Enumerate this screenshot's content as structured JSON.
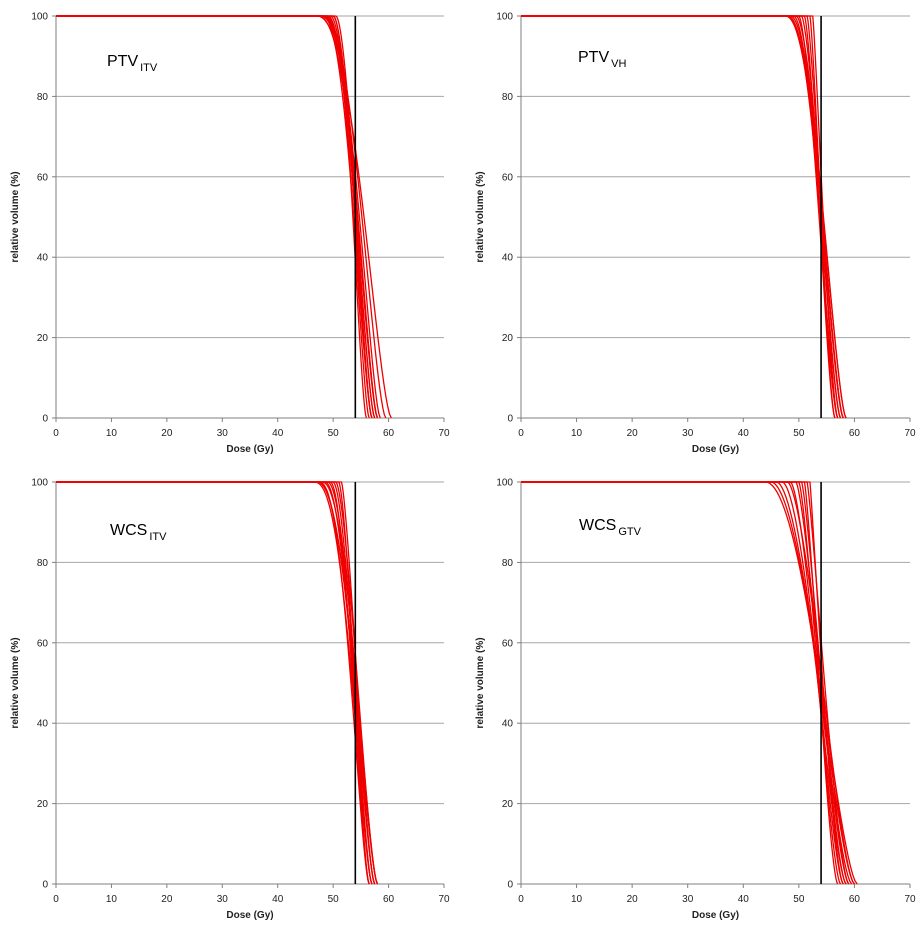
{
  "colors": {
    "curve": "#ee0000",
    "grid": "#a6a6a6",
    "prescription_line": "#000000",
    "axis": "#7f7f7f"
  },
  "chart_data": [
    {
      "type": "line",
      "panel": "top-left",
      "label_main": "PTV",
      "label_sub": "ITV",
      "xlabel": "Dose (Gy)",
      "ylabel": "relative volume (%)",
      "xlim": [
        0,
        70
      ],
      "ylim": [
        0,
        100
      ],
      "xticks": [
        "0",
        "10",
        "20",
        "30",
        "40",
        "50",
        "60",
        "70"
      ],
      "yticks": [
        "0",
        "20",
        "40",
        "60",
        "80",
        "100"
      ],
      "grid": "horizontal",
      "reference_dose": 54,
      "curves": [
        {
          "d100": 47.0,
          "d0": 58.0,
          "k": 2.6
        },
        {
          "d100": 47.5,
          "d0": 58.5,
          "k": 2.5
        },
        {
          "d100": 48.0,
          "d0": 58.0,
          "k": 2.4
        },
        {
          "d100": 48.0,
          "d0": 57.0,
          "k": 2.3
        },
        {
          "d100": 48.5,
          "d0": 57.5,
          "k": 2.2
        },
        {
          "d100": 49.0,
          "d0": 58.0,
          "k": 2.0
        },
        {
          "d100": 49.0,
          "d0": 56.5,
          "k": 2.2
        },
        {
          "d100": 49.5,
          "d0": 57.0,
          "k": 2.0
        },
        {
          "d100": 50.0,
          "d0": 57.5,
          "k": 1.8
        },
        {
          "d100": 50.0,
          "d0": 56.0,
          "k": 2.0
        },
        {
          "d100": 50.5,
          "d0": 57.0,
          "k": 1.8
        },
        {
          "d100": 47.0,
          "d0": 60.5,
          "k": 2.3
        },
        {
          "d100": 48.5,
          "d0": 59.5,
          "k": 2.1
        }
      ]
    },
    {
      "type": "line",
      "panel": "top-right",
      "label_main": "PTV",
      "label_sub": "VH",
      "xlabel": "Dose (Gy)",
      "ylabel": "relative volume (%)",
      "xlim": [
        0,
        70
      ],
      "ylim": [
        0,
        100
      ],
      "xticks": [
        "0",
        "10",
        "20",
        "30",
        "40",
        "50",
        "60",
        "70"
      ],
      "yticks": [
        "0",
        "20",
        "40",
        "60",
        "80",
        "100"
      ],
      "grid": "horizontal",
      "reference_dose": 54,
      "curves": [
        {
          "d100": 47.5,
          "d0": 58.0,
          "k": 2.3
        },
        {
          "d100": 48.0,
          "d0": 57.5,
          "k": 2.2
        },
        {
          "d100": 48.5,
          "d0": 58.5,
          "k": 2.0
        },
        {
          "d100": 49.0,
          "d0": 57.0,
          "k": 2.0
        },
        {
          "d100": 49.5,
          "d0": 58.0,
          "k": 1.8
        },
        {
          "d100": 50.0,
          "d0": 57.0,
          "k": 1.6
        },
        {
          "d100": 50.5,
          "d0": 58.0,
          "k": 1.5
        },
        {
          "d100": 51.0,
          "d0": 56.5,
          "k": 1.5
        },
        {
          "d100": 51.5,
          "d0": 57.5,
          "k": 1.3
        },
        {
          "d100": 52.0,
          "d0": 56.5,
          "k": 1.3
        },
        {
          "d100": 52.5,
          "d0": 57.0,
          "k": 1.2
        },
        {
          "d100": 48.0,
          "d0": 58.5,
          "k": 2.1
        }
      ]
    },
    {
      "type": "line",
      "panel": "bottom-left",
      "label_main": "WCS",
      "label_sub": "ITV",
      "xlabel": "Dose (Gy)",
      "ylabel": "relative volume (%)",
      "xlim": [
        0,
        70
      ],
      "ylim": [
        0,
        100
      ],
      "xticks": [
        "0",
        "10",
        "20",
        "30",
        "40",
        "50",
        "60",
        "70"
      ],
      "yticks": [
        "0",
        "20",
        "40",
        "60",
        "80",
        "100"
      ],
      "grid": "horizontal",
      "reference_dose": 54,
      "curves": [
        {
          "d100": 46.5,
          "d0": 57.0,
          "k": 2.5
        },
        {
          "d100": 47.0,
          "d0": 57.5,
          "k": 2.4
        },
        {
          "d100": 47.5,
          "d0": 56.5,
          "k": 2.3
        },
        {
          "d100": 48.0,
          "d0": 58.0,
          "k": 2.2
        },
        {
          "d100": 48.5,
          "d0": 57.0,
          "k": 2.1
        },
        {
          "d100": 49.0,
          "d0": 57.5,
          "k": 2.0
        },
        {
          "d100": 49.5,
          "d0": 56.5,
          "k": 1.9
        },
        {
          "d100": 50.0,
          "d0": 57.0,
          "k": 1.8
        },
        {
          "d100": 50.5,
          "d0": 58.0,
          "k": 1.6
        },
        {
          "d100": 51.0,
          "d0": 56.5,
          "k": 1.6
        },
        {
          "d100": 51.5,
          "d0": 57.5,
          "k": 1.4
        },
        {
          "d100": 47.0,
          "d0": 58.0,
          "k": 2.3
        }
      ]
    },
    {
      "type": "line",
      "panel": "bottom-right",
      "label_main": "WCS",
      "label_sub": "GTV",
      "xlabel": "Dose (Gy)",
      "ylabel": "relative volume (%)",
      "xlim": [
        0,
        70
      ],
      "ylim": [
        0,
        100
      ],
      "xticks": [
        "0",
        "10",
        "20",
        "30",
        "40",
        "50",
        "60",
        "70"
      ],
      "yticks": [
        "0",
        "20",
        "40",
        "60",
        "80",
        "100"
      ],
      "grid": "horizontal",
      "reference_dose": 54,
      "curves": [
        {
          "d100": 44.0,
          "d0": 60.5,
          "k": 2.0
        },
        {
          "d100": 45.0,
          "d0": 60.0,
          "k": 1.9
        },
        {
          "d100": 46.0,
          "d0": 59.5,
          "k": 1.8
        },
        {
          "d100": 47.0,
          "d0": 58.5,
          "k": 1.8
        },
        {
          "d100": 48.0,
          "d0": 60.0,
          "k": 1.6
        },
        {
          "d100": 48.5,
          "d0": 58.0,
          "k": 1.6
        },
        {
          "d100": 49.5,
          "d0": 59.0,
          "k": 1.4
        },
        {
          "d100": 50.0,
          "d0": 57.5,
          "k": 1.4
        },
        {
          "d100": 50.5,
          "d0": 58.5,
          "k": 1.3
        },
        {
          "d100": 51.0,
          "d0": 57.0,
          "k": 1.3
        },
        {
          "d100": 51.5,
          "d0": 59.0,
          "k": 1.2
        },
        {
          "d100": 52.0,
          "d0": 58.0,
          "k": 1.1
        }
      ]
    }
  ]
}
